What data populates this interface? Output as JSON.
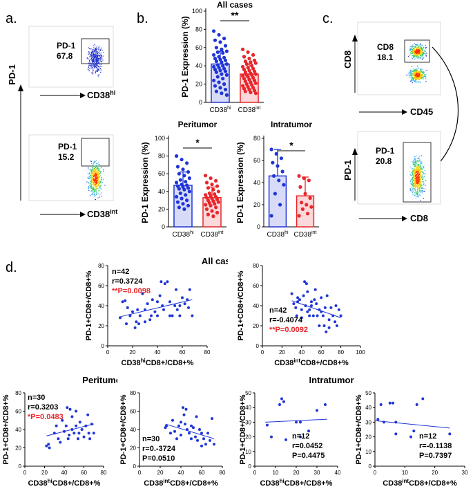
{
  "panels": {
    "a": "a.",
    "b": "b.",
    "c": "c.",
    "d": "d."
  },
  "flow_a": {
    "ylabel": "PD-1",
    "top": {
      "gate_label": "PD-1",
      "gate_value": "67.8",
      "xlabel_main": "CD38",
      "xlabel_sup": "hi"
    },
    "bottom": {
      "gate_label": "PD-1",
      "gate_value": "15.2",
      "xlabel_main": "CD38",
      "xlabel_sup": "int"
    }
  },
  "flow_c": {
    "top": {
      "ylabel": "CD8",
      "gate_label": "CD8",
      "gate_value": "18.1",
      "xlabel": "CD45"
    },
    "bottom": {
      "ylabel": "PD-1",
      "gate_label": "PD-1",
      "gate_value": "20.8",
      "xlabel": "CD8"
    }
  },
  "chart_data": [
    {
      "id": "b_all",
      "type": "bar",
      "title": "All cases",
      "ylabel": "PD-1 Expression (%)",
      "categories": [
        "CD38hi",
        "CD38int"
      ],
      "tick_main": [
        "CD38",
        "CD38"
      ],
      "tick_sup": [
        "hi",
        "int"
      ],
      "values": [
        42,
        31
      ],
      "errors": [
        14,
        11
      ],
      "ylim": [
        0,
        100
      ],
      "yticks": [
        "0",
        "20",
        "40",
        "60",
        "80",
        "100"
      ],
      "significance": "**",
      "colors": [
        "#1f35d6",
        "#e8262b"
      ],
      "points": [
        [
          78,
          74,
          70,
          68,
          66,
          62,
          60,
          58,
          56,
          55,
          54,
          52,
          50,
          49,
          48,
          47,
          46,
          45,
          44,
          42,
          41,
          40,
          39,
          38,
          37,
          36,
          35,
          34,
          33,
          31,
          30,
          28,
          26,
          24,
          22,
          20,
          18,
          16,
          14,
          12,
          10,
          8
        ],
        [
          58,
          55,
          52,
          50,
          48,
          46,
          45,
          44,
          43,
          42,
          40,
          39,
          38,
          37,
          36,
          35,
          34,
          33,
          32,
          31,
          30,
          30,
          29,
          28,
          27,
          26,
          25,
          24,
          23,
          22,
          21,
          20,
          19,
          18,
          17,
          16,
          15,
          14,
          13,
          12,
          11,
          10
        ]
      ]
    },
    {
      "id": "b_peri",
      "type": "bar",
      "title": "Peritumor",
      "ylabel": "PD-1 Expression (%)",
      "categories": [
        "CD38hi",
        "CD38int"
      ],
      "tick_main": [
        "CD38",
        "CD38"
      ],
      "tick_sup": [
        "hi",
        "int"
      ],
      "values": [
        47,
        33
      ],
      "errors": [
        15,
        12
      ],
      "ylim": [
        0,
        100
      ],
      "yticks": [
        "0",
        "20",
        "40",
        "60",
        "80",
        "100"
      ],
      "significance": "*",
      "colors": [
        "#1f35d6",
        "#e8262b"
      ],
      "points": [
        [
          80,
          76,
          72,
          68,
          65,
          62,
          60,
          58,
          55,
          53,
          51,
          50,
          48,
          47,
          46,
          45,
          44,
          43,
          42,
          40,
          38,
          36,
          34,
          32,
          30,
          28,
          26,
          24,
          22,
          20
        ],
        [
          58,
          55,
          52,
          50,
          48,
          46,
          44,
          42,
          40,
          38,
          37,
          36,
          35,
          34,
          33,
          32,
          31,
          30,
          29,
          28,
          27,
          26,
          25,
          24,
          22,
          20,
          18,
          16,
          14,
          12
        ]
      ]
    },
    {
      "id": "b_intra",
      "type": "bar",
      "title": "Intratumor",
      "ylabel": "PD-1 Expression (%)",
      "categories": [
        "CD38hi",
        "CD38int"
      ],
      "tick_main": [
        "CD38",
        "CD38"
      ],
      "tick_sup": [
        "hi",
        "int"
      ],
      "values": [
        46,
        28
      ],
      "errors": [
        24,
        17
      ],
      "ylim": [
        0,
        80
      ],
      "yticks": [
        "0",
        "20",
        "40",
        "60",
        "80"
      ],
      "significance": "*",
      "colors": [
        "#1f35d6",
        "#e8262b"
      ],
      "points": [
        [
          70,
          66,
          62,
          58,
          55,
          50,
          46,
          42,
          38,
          30,
          20,
          10
        ],
        [
          46,
          44,
          42,
          36,
          30,
          26,
          22,
          20,
          18,
          16,
          12,
          10
        ]
      ]
    },
    {
      "id": "d_all_hi",
      "type": "scatter",
      "group_title": "All cases",
      "ylabel": "PD-1+CD8+/CD8+%",
      "xlabel_pre": "CD38",
      "xlabel_sup": "hi",
      "xlabel_post": "CD8+/CD8+%",
      "xlim": [
        0,
        80
      ],
      "ylim": [
        0,
        80
      ],
      "xticks": [
        "0",
        "20",
        "40",
        "60",
        "80"
      ],
      "yticks": [
        "0",
        "20",
        "40",
        "60",
        "80"
      ],
      "n": "n=42",
      "r": "r=0.3724",
      "p": "**P=0.0098",
      "fit": [
        [
          10,
          29
        ],
        [
          68,
          46
        ]
      ],
      "points": [
        [
          10,
          28
        ],
        [
          12,
          44
        ],
        [
          14,
          45
        ],
        [
          15,
          22
        ],
        [
          16,
          38
        ],
        [
          18,
          30
        ],
        [
          20,
          34
        ],
        [
          22,
          18
        ],
        [
          23,
          24
        ],
        [
          24,
          36
        ],
        [
          25,
          22
        ],
        [
          26,
          30
        ],
        [
          28,
          52
        ],
        [
          30,
          24
        ],
        [
          32,
          42
        ],
        [
          34,
          26
        ],
        [
          35,
          30
        ],
        [
          36,
          46
        ],
        [
          38,
          34
        ],
        [
          40,
          30
        ],
        [
          42,
          50
        ],
        [
          43,
          64
        ],
        [
          44,
          40
        ],
        [
          45,
          36
        ],
        [
          46,
          62
        ],
        [
          48,
          64
        ],
        [
          50,
          44
        ],
        [
          50,
          30
        ],
        [
          52,
          30
        ],
        [
          54,
          40
        ],
        [
          55,
          56
        ],
        [
          56,
          36
        ],
        [
          58,
          40
        ],
        [
          58,
          30
        ],
        [
          60,
          48
        ],
        [
          62,
          42
        ],
        [
          64,
          46
        ],
        [
          65,
          38
        ],
        [
          66,
          56
        ],
        [
          68,
          30
        ],
        [
          30,
          36
        ],
        [
          40,
          44
        ]
      ]
    },
    {
      "id": "d_all_int",
      "type": "scatter",
      "ylabel": "PD-1+CD8+/CD8+%",
      "xlabel_pre": "CD38",
      "xlabel_sup": "int",
      "xlabel_post": "CD8+/CD8+%",
      "xlim": [
        0,
        100
      ],
      "ylim": [
        0,
        80
      ],
      "xticks": [
        "0",
        "20",
        "40",
        "60",
        "80",
        "100"
      ],
      "yticks": [
        "0",
        "20",
        "40",
        "60",
        "80"
      ],
      "n": "n=42",
      "r": "r=-0.4074",
      "p": "**P=0.0092",
      "fit": [
        [
          30,
          45
        ],
        [
          80,
          28
        ]
      ],
      "points": [
        [
          30,
          52
        ],
        [
          32,
          42
        ],
        [
          34,
          38
        ],
        [
          35,
          30
        ],
        [
          36,
          44
        ],
        [
          38,
          46
        ],
        [
          40,
          36
        ],
        [
          40,
          28
        ],
        [
          42,
          50
        ],
        [
          43,
          64
        ],
        [
          44,
          40
        ],
        [
          45,
          62
        ],
        [
          46,
          54
        ],
        [
          46,
          34
        ],
        [
          48,
          36
        ],
        [
          48,
          30
        ],
        [
          50,
          44
        ],
        [
          50,
          40
        ],
        [
          52,
          30
        ],
        [
          53,
          46
        ],
        [
          54,
          56
        ],
        [
          55,
          42
        ],
        [
          56,
          30
        ],
        [
          58,
          36
        ],
        [
          58,
          20
        ],
        [
          60,
          48
        ],
        [
          60,
          34
        ],
        [
          62,
          30
        ],
        [
          63,
          20
        ],
        [
          64,
          38
        ],
        [
          65,
          14
        ],
        [
          66,
          50
        ],
        [
          68,
          26
        ],
        [
          68,
          18
        ],
        [
          70,
          38
        ],
        [
          72,
          30
        ],
        [
          74,
          24
        ],
        [
          75,
          40
        ],
        [
          76,
          20
        ],
        [
          78,
          36
        ],
        [
          80,
          30
        ],
        [
          36,
          48
        ]
      ]
    },
    {
      "id": "d_peri_hi",
      "type": "scatter",
      "group_title": "Peritumor",
      "ylabel": "PD-1+CD8+/CD8+%",
      "xlabel_pre": "CD38",
      "xlabel_sup": "hi",
      "xlabel_post": "CD8+/CD8+%",
      "xlim": [
        0,
        80
      ],
      "ylim": [
        0,
        80
      ],
      "xticks": [
        "0",
        "20",
        "40",
        "60",
        "80"
      ],
      "yticks": [
        "0",
        "20",
        "40",
        "60",
        "80"
      ],
      "n": "n=30",
      "r": "r=0.3203",
      "p": "*P=0.0483",
      "fit": [
        [
          22,
          33
        ],
        [
          70,
          46
        ]
      ],
      "points": [
        [
          22,
          22
        ],
        [
          24,
          24
        ],
        [
          25,
          20
        ],
        [
          30,
          36
        ],
        [
          32,
          44
        ],
        [
          34,
          30
        ],
        [
          36,
          26
        ],
        [
          38,
          50
        ],
        [
          40,
          38
        ],
        [
          42,
          44
        ],
        [
          43,
          64
        ],
        [
          44,
          30
        ],
        [
          45,
          34
        ],
        [
          46,
          62
        ],
        [
          48,
          40
        ],
        [
          48,
          54
        ],
        [
          50,
          36
        ],
        [
          52,
          44
        ],
        [
          52,
          60
        ],
        [
          54,
          30
        ],
        [
          55,
          36
        ],
        [
          56,
          48
        ],
        [
          58,
          40
        ],
        [
          60,
          32
        ],
        [
          62,
          44
        ],
        [
          64,
          56
        ],
        [
          65,
          36
        ],
        [
          66,
          30
        ],
        [
          68,
          46
        ],
        [
          70,
          36
        ]
      ]
    },
    {
      "id": "d_peri_int",
      "type": "scatter",
      "ylabel": "PD-1+CD8+/CD8+%",
      "xlabel_pre": "CD38",
      "xlabel_sup": "int",
      "xlabel_post": "CD8+/CD8+%",
      "xlim": [
        0,
        80
      ],
      "ylim": [
        0,
        80
      ],
      "xticks": [
        "0",
        "20",
        "40",
        "60",
        "80"
      ],
      "yticks": [
        "0",
        "20",
        "40",
        "60",
        "80"
      ],
      "n": "n=30",
      "r": "r=0.-3724",
      "p": "P=0.0510",
      "fit": [
        [
          25,
          46
        ],
        [
          72,
          30
        ]
      ],
      "points": [
        [
          25,
          42
        ],
        [
          26,
          44
        ],
        [
          30,
          36
        ],
        [
          32,
          50
        ],
        [
          34,
          38
        ],
        [
          36,
          30
        ],
        [
          38,
          44
        ],
        [
          40,
          48
        ],
        [
          40,
          34
        ],
        [
          42,
          64
        ],
        [
          43,
          56
        ],
        [
          44,
          46
        ],
        [
          45,
          62
        ],
        [
          46,
          40
        ],
        [
          48,
          36
        ],
        [
          50,
          44
        ],
        [
          50,
          30
        ],
        [
          52,
          42
        ],
        [
          54,
          32
        ],
        [
          55,
          54
        ],
        [
          56,
          28
        ],
        [
          58,
          40
        ],
        [
          60,
          22
        ],
        [
          60,
          36
        ],
        [
          62,
          30
        ],
        [
          64,
          24
        ],
        [
          66,
          36
        ],
        [
          68,
          28
        ],
        [
          70,
          52
        ],
        [
          72,
          24
        ]
      ]
    },
    {
      "id": "d_intra_hi",
      "type": "scatter",
      "group_title": "Intratumor",
      "ylabel": "PD-1+CD8+/CD8+%",
      "xlabel_pre": "CD38",
      "xlabel_sup": "hi",
      "xlabel_post": "CD8+/CD8+%",
      "xlim": [
        0,
        40
      ],
      "ylim": [
        0,
        50
      ],
      "xticks": [
        "0",
        "10",
        "20",
        "30",
        "40"
      ],
      "yticks": [
        "0",
        "10",
        "20",
        "30",
        "40",
        "50"
      ],
      "n": "n=12",
      "r": "r=0.0452",
      "p": "P=0.4475",
      "fit": [
        [
          5,
          30
        ],
        [
          35,
          32
        ]
      ],
      "points": [
        [
          6,
          28
        ],
        [
          8,
          20
        ],
        [
          12,
          42
        ],
        [
          13,
          46
        ],
        [
          14,
          44
        ],
        [
          15,
          18
        ],
        [
          20,
          30
        ],
        [
          22,
          30
        ],
        [
          22,
          20
        ],
        [
          26,
          24
        ],
        [
          30,
          38
        ],
        [
          34,
          42
        ]
      ]
    },
    {
      "id": "d_intra_int",
      "type": "scatter",
      "ylabel": "PD-1+CD8+/CD8+%",
      "xlabel_pre": "CD38",
      "xlabel_sup": "int",
      "xlabel_post": "CD8+/CD8+%",
      "xlim": [
        0,
        30
      ],
      "ylim": [
        0,
        50
      ],
      "xticks": [
        "0",
        "10",
        "20",
        "30"
      ],
      "yticks": [
        "0",
        "10",
        "20",
        "30",
        "40",
        "50"
      ],
      "n": "n=12",
      "r": "r=-0.1138",
      "p": "P=0.7397",
      "fit": [
        [
          0,
          31
        ],
        [
          25,
          26
        ]
      ],
      "points": [
        [
          1,
          32
        ],
        [
          2,
          42
        ],
        [
          3,
          30
        ],
        [
          5,
          43
        ],
        [
          6,
          43
        ],
        [
          7,
          30
        ],
        [
          7,
          22
        ],
        [
          12,
          20
        ],
        [
          13,
          24
        ],
        [
          14,
          42
        ],
        [
          16,
          46
        ],
        [
          25,
          22
        ]
      ]
    }
  ]
}
